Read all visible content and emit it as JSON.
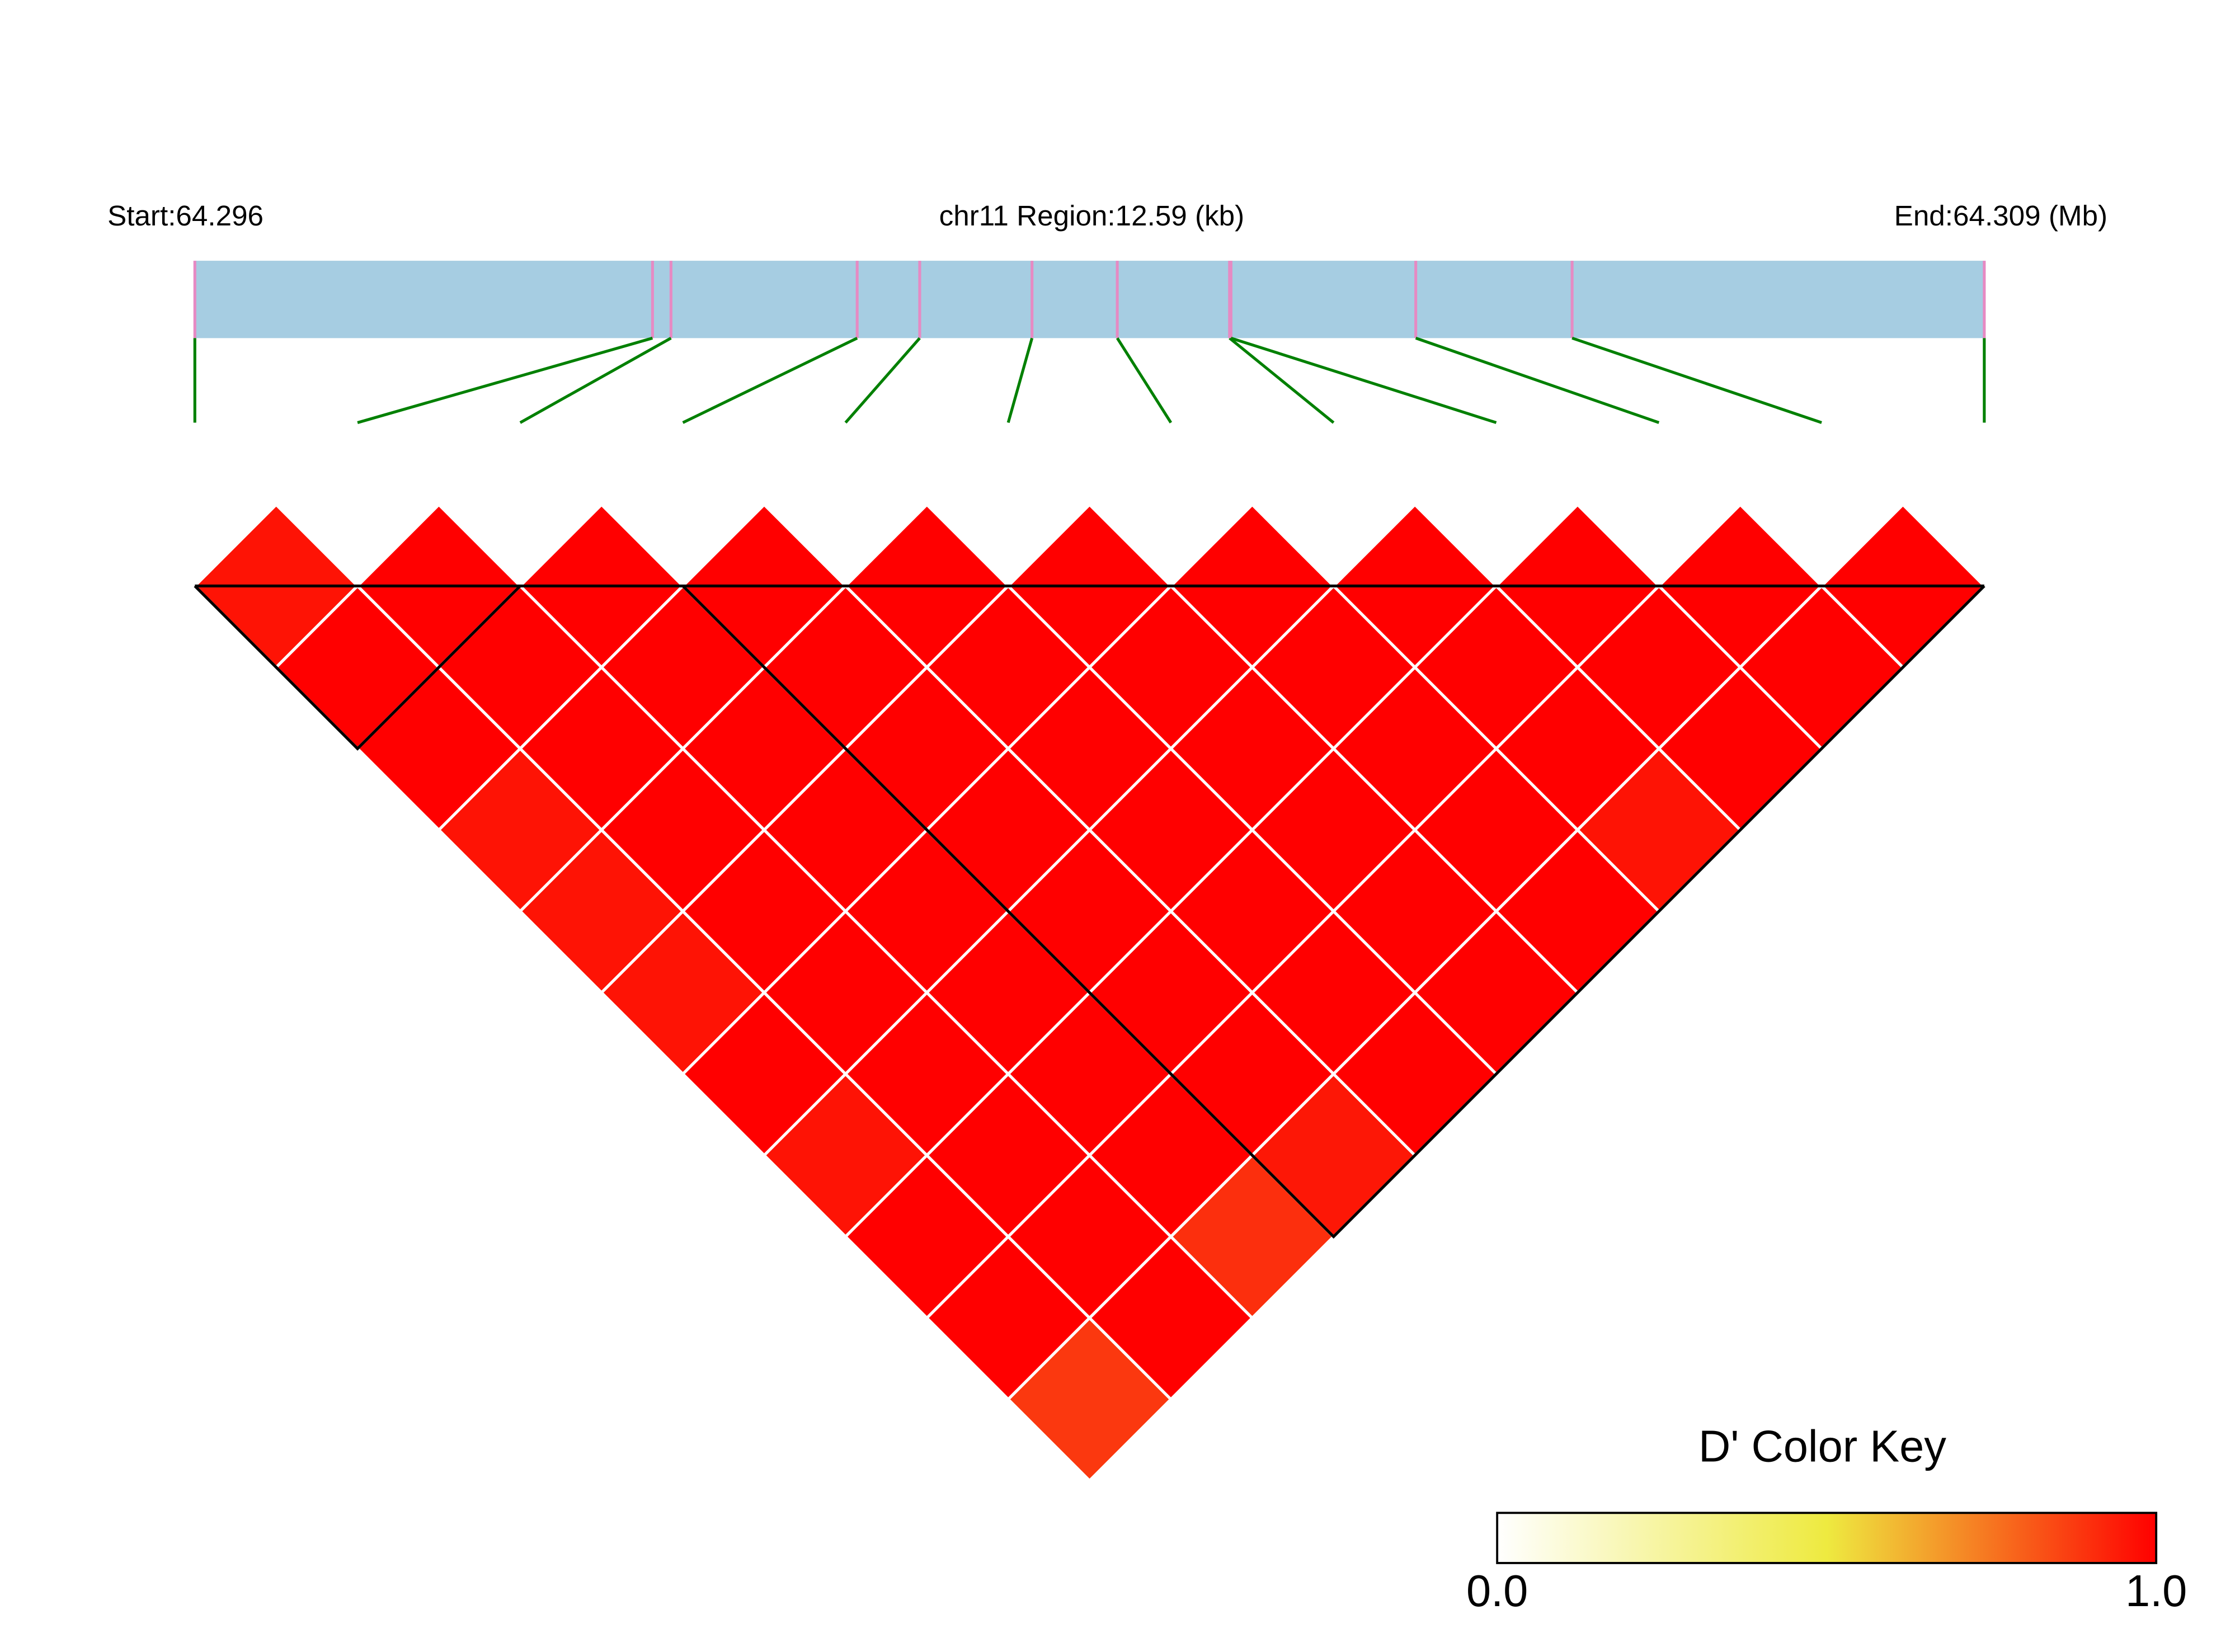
{
  "chart_data": {
    "type": "ld-heatmap",
    "start_label": "Start:64.296",
    "region_label": "chr11 Region:12.59 (kb)",
    "end_label": "End:64.309 (Mb)",
    "xlim": [
      0,
      12.59
    ],
    "positions": [
      0,
      3.22,
      3.35,
      4.66,
      5.1,
      5.89,
      6.49,
      7.28,
      7.29,
      8.59,
      9.69,
      12.59
    ],
    "dprime": [
      [
        0.96,
        1,
        1,
        0.96,
        0.96,
        0.96,
        1,
        0.96,
        1,
        1,
        0.88
      ],
      [
        1,
        1,
        1,
        1,
        1,
        1,
        1,
        1,
        1,
        1
      ],
      [
        1,
        1,
        1,
        1,
        1,
        1,
        1,
        1,
        0.9
      ],
      [
        1,
        1,
        1,
        1,
        1,
        1,
        1,
        0.95
      ],
      [
        1,
        1,
        1,
        1,
        1,
        1,
        1
      ],
      [
        1,
        1,
        1,
        1,
        1,
        1
      ],
      [
        1,
        1,
        1,
        1,
        1
      ],
      [
        1,
        1,
        1,
        0.96
      ],
      [
        1,
        1,
        1
      ],
      [
        1,
        1
      ],
      [
        1
      ]
    ],
    "blocks": [
      [
        0,
        2
      ],
      [
        3,
        11
      ]
    ],
    "bar_color": "#a6cde2",
    "snp_tick_color": "#e68ac3",
    "connector_color": "#008000",
    "colorscale": [
      {
        "at": 0,
        "color": "#ffffff"
      },
      {
        "at": 0.5,
        "color": "#eeea40"
      },
      {
        "at": 1,
        "color": "#ff0000"
      }
    ],
    "colorbar_title": "D' Color Key",
    "colorbar_ticks": [
      {
        "value": 0,
        "label": "0.0"
      },
      {
        "value": 1,
        "label": "1.0"
      }
    ]
  }
}
